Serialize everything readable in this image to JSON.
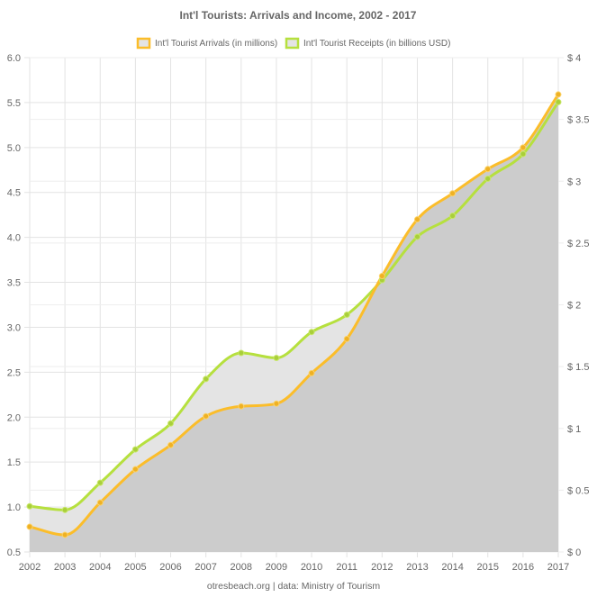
{
  "chart_data": {
    "type": "line",
    "title": "Int'l Tourists: Arrivals and Income, 2002 - 2017",
    "footer": "otresbeach.org | data: Ministry of Tourism",
    "x": [
      "2002",
      "2003",
      "2004",
      "2005",
      "2006",
      "2007",
      "2008",
      "2009",
      "2010",
      "2011",
      "2012",
      "2013",
      "2014",
      "2015",
      "2016",
      "2017"
    ],
    "series": [
      {
        "name": "Int'l Tourist Arrivals (in millions)",
        "axis": "left",
        "color": "#fbbd2a",
        "values": [
          0.78,
          0.69,
          1.05,
          1.42,
          1.69,
          2.01,
          2.12,
          2.15,
          2.49,
          2.87,
          3.57,
          4.2,
          4.49,
          4.76,
          5.0,
          5.59
        ]
      },
      {
        "name": "Int'l Tourist Receipts (in billions USD)",
        "axis": "right",
        "color": "#b6e03e",
        "values": [
          0.37,
          0.34,
          0.56,
          0.83,
          1.04,
          1.4,
          1.61,
          1.57,
          1.78,
          1.92,
          2.2,
          2.55,
          2.72,
          3.02,
          3.22,
          3.64
        ]
      }
    ],
    "y_left": {
      "ylim": [
        0.5,
        6.0
      ],
      "ticks": [
        "0.5",
        "1.0",
        "1.5",
        "2.0",
        "2.5",
        "3.0",
        "3.5",
        "4.0",
        "4.5",
        "5.0",
        "5.5",
        "6.0"
      ]
    },
    "y_right": {
      "ylim": [
        0,
        4
      ],
      "ticks": [
        "$ 0",
        "$ 0.5",
        "$ 1",
        "$ 1.5",
        "$ 2",
        "$ 2.5",
        "$ 3",
        "$ 3.5",
        "$ 4"
      ]
    },
    "grid": true,
    "legend": "top-center",
    "area_fill_colors": [
      "#cccccc",
      "#e4e4e4"
    ]
  }
}
